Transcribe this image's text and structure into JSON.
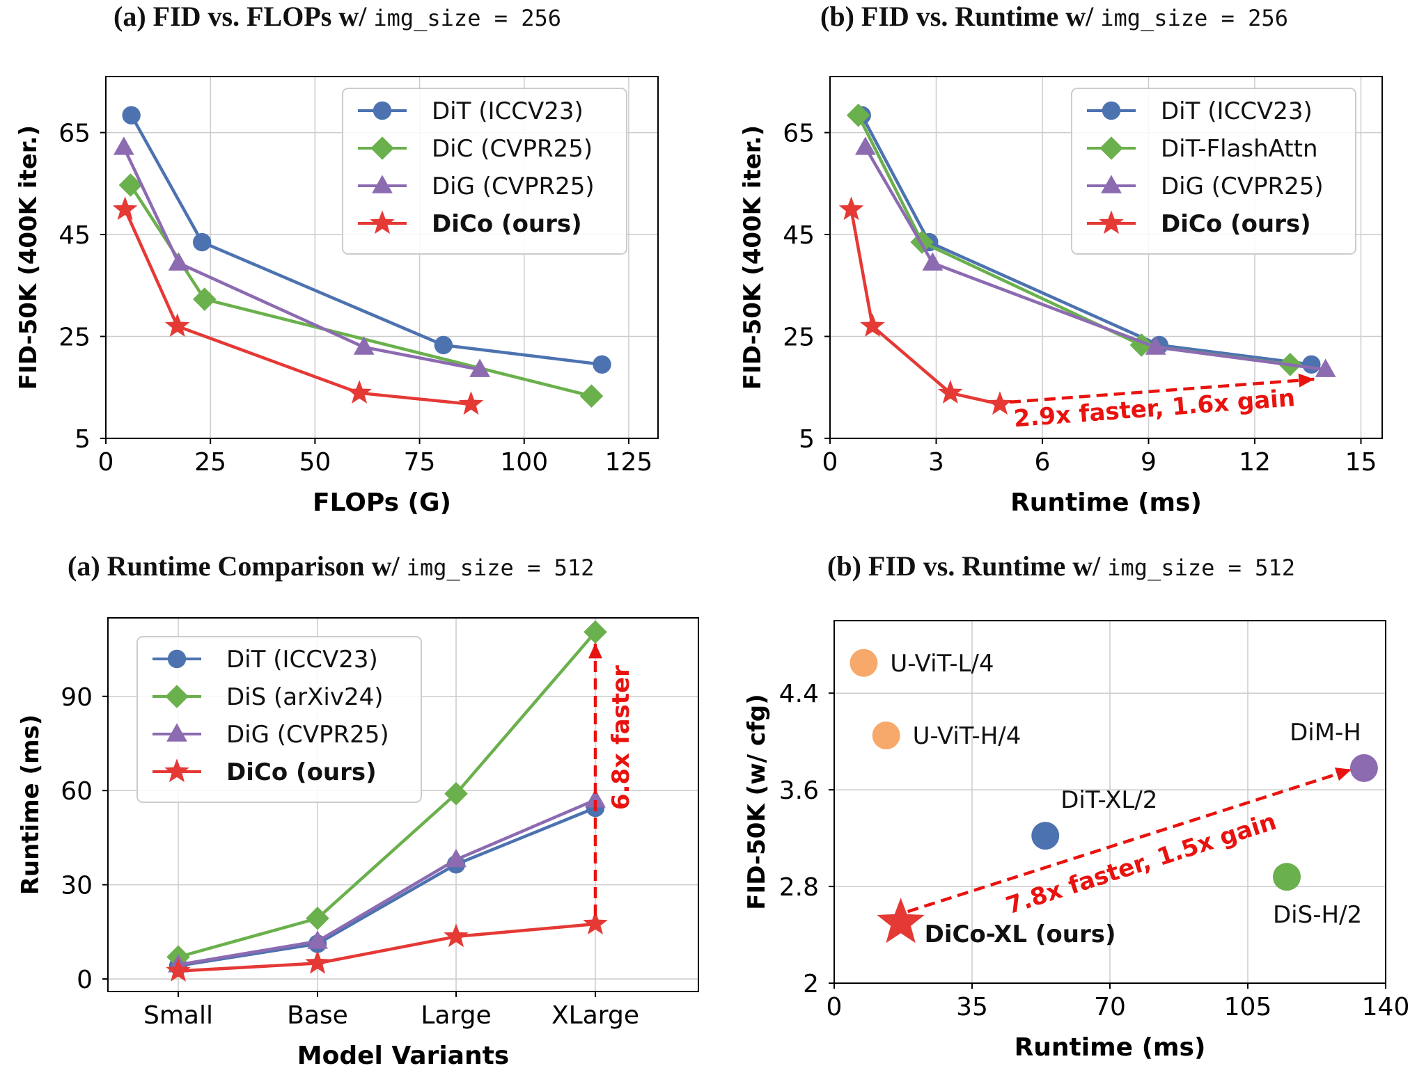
{
  "chart_data": [
    {
      "type": "line",
      "title": "(a) FID vs. FLOPs w/",
      "title_code": "img_size = 256",
      "xlabel": "FLOPs (G)",
      "ylabel": "FID-50K (400K iter.)",
      "xlim": [
        0,
        132
      ],
      "ylim": [
        5,
        76
      ],
      "xticks": [
        0,
        25,
        50,
        75,
        100,
        125
      ],
      "yticks": [
        5,
        25,
        45,
        65
      ],
      "grid": true,
      "legend": "top-right",
      "series": [
        {
          "name": "DiT (ICCV23)",
          "color": "#4c72b0",
          "marker": "circle",
          "bold": false,
          "x": [
            6.1,
            23.0,
            80.7,
            118.6
          ],
          "y": [
            68.4,
            43.5,
            23.3,
            19.5
          ]
        },
        {
          "name": "DiC (CVPR25)",
          "color": "#6ab04c",
          "marker": "diamond",
          "bold": false,
          "x": [
            5.9,
            23.6,
            116.1
          ],
          "y": [
            54.7,
            32.3,
            13.3
          ]
        },
        {
          "name": "DiG (CVPR25)",
          "color": "#8c6bb1",
          "marker": "triangle",
          "bold": false,
          "x": [
            4.3,
            17.4,
            61.7,
            89.4
          ],
          "y": [
            62.1,
            39.4,
            22.9,
            18.5
          ]
        },
        {
          "name": "DiCo (ours)",
          "color": "#e53935",
          "marker": "star",
          "bold": true,
          "x": [
            4.6,
            17.1,
            60.6,
            87.3
          ],
          "y": [
            49.9,
            27.0,
            13.9,
            11.7
          ]
        }
      ]
    },
    {
      "type": "line",
      "title": "(b) FID vs. Runtime w/",
      "title_code": "img_size = 256",
      "xlabel": "Runtime (ms)",
      "ylabel": "FID-50K (400K iter.)",
      "xlim": [
        0,
        15.6
      ],
      "ylim": [
        5,
        76
      ],
      "xticks": [
        0,
        3,
        6,
        9,
        12,
        15
      ],
      "yticks": [
        5,
        25,
        45,
        65
      ],
      "grid": true,
      "legend": "top-right",
      "annotation": "2.9x faster, 1.6x gain",
      "series": [
        {
          "name": "DiT (ICCV23)",
          "color": "#4c72b0",
          "marker": "circle",
          "bold": false,
          "x": [
            0.9,
            2.8,
            9.3,
            13.6
          ],
          "y": [
            68.4,
            43.5,
            23.3,
            19.5
          ]
        },
        {
          "name": "DiT-FlashAttn",
          "color": "#6ab04c",
          "marker": "diamond",
          "bold": false,
          "x": [
            0.8,
            2.6,
            8.8,
            13.0
          ],
          "y": [
            68.4,
            43.5,
            23.3,
            19.5
          ]
        },
        {
          "name": "DiG (CVPR25)",
          "color": "#8c6bb1",
          "marker": "triangle",
          "bold": false,
          "x": [
            1.0,
            2.9,
            9.2,
            14.0
          ],
          "y": [
            62.1,
            39.4,
            22.9,
            18.5
          ]
        },
        {
          "name": "DiCo (ours)",
          "color": "#e53935",
          "marker": "star",
          "bold": true,
          "x": [
            0.6,
            1.2,
            3.4,
            4.8
          ],
          "y": [
            49.9,
            27.0,
            13.9,
            11.7
          ]
        }
      ]
    },
    {
      "type": "line",
      "title": "(a) Runtime Comparison w/",
      "title_code": "img_size = 512",
      "xlabel": "Model Variants",
      "ylabel": "Runtime (ms)",
      "categories": [
        "Small",
        "Base",
        "Large",
        "XLarge"
      ],
      "ylim": [
        -4,
        115
      ],
      "yticks": [
        0,
        30,
        60,
        90
      ],
      "grid": true,
      "legend": "top-left",
      "annotation": "6.8x faster",
      "series": [
        {
          "name": "DiT (ICCV23)",
          "color": "#4c72b0",
          "marker": "circle",
          "bold": false,
          "values": [
            4.2,
            11.2,
            36.5,
            54.5
          ]
        },
        {
          "name": "DiS (arXiv24)",
          "color": "#6ab04c",
          "marker": "diamond",
          "bold": false,
          "values": [
            7.0,
            19.3,
            59.0,
            110.5
          ]
        },
        {
          "name": "DiG (CVPR25)",
          "color": "#8c6bb1",
          "marker": "triangle",
          "bold": false,
          "values": [
            4.5,
            12.0,
            38.0,
            57.0
          ]
        },
        {
          "name": "DiCo (ours)",
          "color": "#e53935",
          "marker": "star",
          "bold": true,
          "values": [
            2.5,
            5.0,
            13.5,
            17.5
          ]
        }
      ]
    },
    {
      "type": "scatter",
      "title": "(b) FID vs. Runtime w/",
      "title_code": "img_size = 512",
      "xlabel": "Runtime (ms)",
      "ylabel": "FID-50K (w/ cfg)",
      "xlim": [
        0,
        140
      ],
      "ylim": [
        2.0,
        5.0
      ],
      "xticks": [
        0,
        35,
        70,
        105,
        140
      ],
      "yticks": [
        2.0,
        2.8,
        3.6,
        4.4
      ],
      "ytick_labels": [
        "2",
        "2.8",
        "3.6",
        "4.4"
      ],
      "grid": true,
      "annotation": "7.8x faster, 1.5x gain",
      "points": [
        {
          "label": "U-ViT-L/4",
          "x": 7.5,
          "y": 4.65,
          "color": "#f6a96a",
          "marker": "circle",
          "bold": false
        },
        {
          "label": "U-ViT-H/4",
          "x": 13.2,
          "y": 4.05,
          "color": "#f6a96a",
          "marker": "circle",
          "bold": false
        },
        {
          "label": "DiT-XL/2",
          "x": 53.6,
          "y": 3.22,
          "color": "#4c72b0",
          "marker": "circle",
          "bold": false
        },
        {
          "label": "DiM-H",
          "x": 134.5,
          "y": 3.78,
          "color": "#8c6bb1",
          "marker": "circle",
          "bold": false
        },
        {
          "label": "DiS-H/2",
          "x": 114.9,
          "y": 2.88,
          "color": "#6ab04c",
          "marker": "circle",
          "bold": false
        },
        {
          "label": "DiCo-XL (ours)",
          "x": 16.9,
          "y": 2.5,
          "color": "#e53935",
          "marker": "star",
          "bold": true
        }
      ]
    }
  ]
}
